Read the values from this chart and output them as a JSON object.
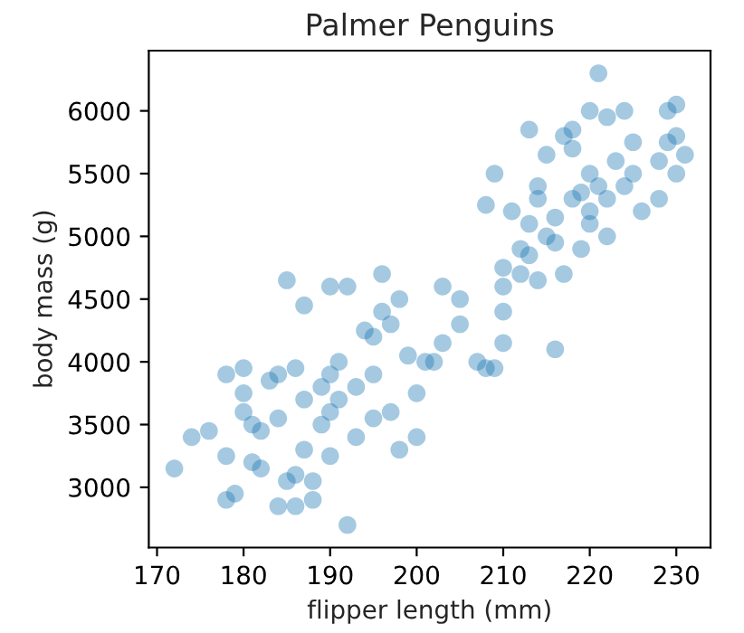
{
  "chart_data": {
    "type": "scatter",
    "title": "Palmer Penguins",
    "xlabel": "flipper length (mm)",
    "ylabel": "body mass (g)",
    "xlim": [
      169.05,
      233.95
    ],
    "ylim": [
      2520,
      6480
    ],
    "xticks": [
      170,
      180,
      190,
      200,
      210,
      220,
      230
    ],
    "yticks": [
      3000,
      3500,
      4000,
      4500,
      5000,
      5500,
      6000
    ],
    "grid": false,
    "marker": "circle",
    "series": [
      {
        "color": "#1f77b4",
        "x": [
          172,
          174,
          176,
          178,
          178,
          178,
          179,
          180,
          180,
          180,
          181,
          181,
          182,
          182,
          183,
          184,
          184,
          184,
          185,
          185,
          186,
          186,
          186,
          187,
          187,
          187,
          188,
          188,
          189,
          189,
          190,
          190,
          190,
          190,
          191,
          191,
          192,
          192,
          193,
          193,
          194,
          195,
          195,
          195,
          196,
          196,
          197,
          197,
          198,
          198,
          199,
          200,
          200,
          201,
          202,
          203,
          203,
          205,
          205,
          207,
          208,
          209,
          209,
          210,
          210,
          210,
          211,
          212,
          212,
          213,
          213,
          214,
          214,
          215,
          215,
          216,
          216,
          217,
          217,
          218,
          218,
          219,
          220,
          220,
          221,
          221,
          222,
          222,
          223,
          224,
          225,
          226,
          228,
          228,
          229,
          229,
          230,
          230,
          231,
          220,
          213,
          216,
          210,
          224,
          220,
          218,
          208,
          230,
          225,
          222,
          219,
          214
        ],
        "values": [
          3150,
          3400,
          3450,
          2900,
          3250,
          3900,
          2950,
          3950,
          3750,
          3600,
          3200,
          3500,
          3150,
          3450,
          3850,
          3550,
          2850,
          3900,
          4650,
          3050,
          2850,
          3100,
          3950,
          3300,
          3700,
          4450,
          3050,
          2900,
          3500,
          3800,
          3900,
          3600,
          3250,
          4600,
          4000,
          3700,
          4600,
          2700,
          3400,
          3800,
          4250,
          4200,
          3550,
          3900,
          4400,
          4700,
          4300,
          3600,
          4500,
          3300,
          4050,
          3400,
          3750,
          4000,
          4000,
          4600,
          4150,
          4500,
          4300,
          4000,
          3950,
          3950,
          5500,
          4600,
          4400,
          4150,
          5200,
          4700,
          4900,
          4850,
          5850,
          5400,
          4650,
          5000,
          5650,
          5150,
          4100,
          5800,
          4700,
          5700,
          5300,
          4900,
          5200,
          5100,
          6300,
          5400,
          5000,
          5950,
          5600,
          5400,
          5500,
          5200,
          5600,
          5300,
          5750,
          6000,
          6050,
          5800,
          5650,
          5500,
          5100,
          4950,
          4750,
          6000,
          6000,
          5850,
          5250,
          5500,
          5750,
          5300,
          5350,
          5300
        ]
      }
    ]
  }
}
